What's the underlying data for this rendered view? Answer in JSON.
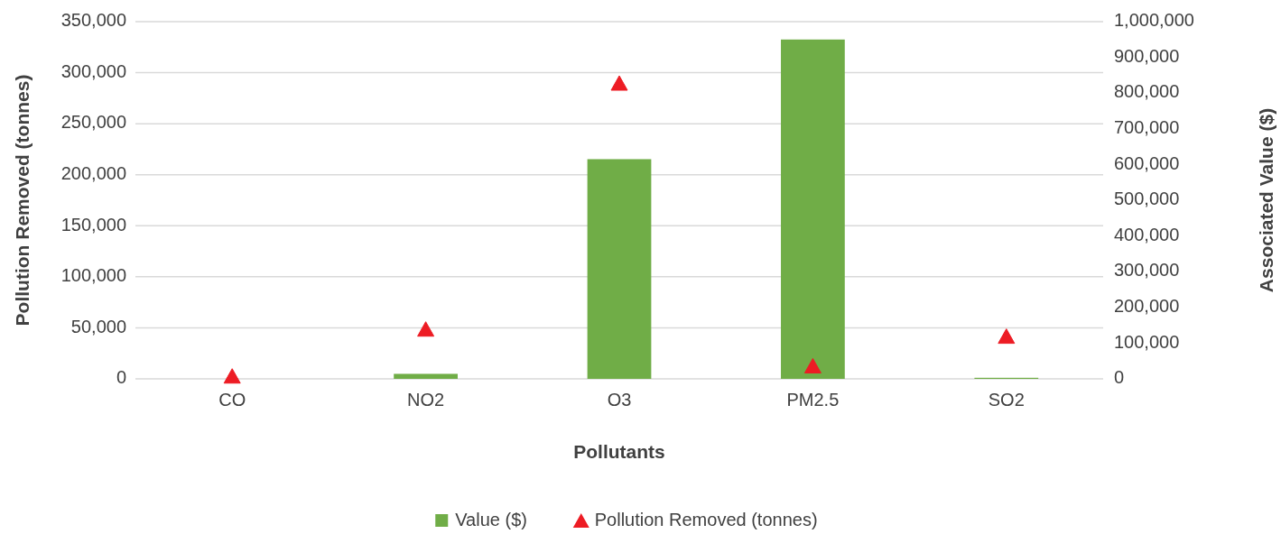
{
  "chart_data": {
    "type": "bar",
    "xlabel": "Pollutants",
    "ylabel": "Pollution Removed (tonnes)",
    "y2label": "Associated Value ($)",
    "categories": [
      "CO",
      "NO2",
      "O3",
      "PM2.5",
      "SO2"
    ],
    "series": [
      {
        "name": "Value ($)",
        "axis": "y2",
        "color": "#70ad47",
        "values": [
          0,
          14000,
          615000,
          950000,
          3000
        ]
      },
      {
        "name": "Pollution Removed (tonnes)",
        "type": "scatter",
        "axis": "y",
        "color": "#ed1c24",
        "marker": "triangle",
        "values": [
          2000,
          48000,
          289000,
          12000,
          41000
        ]
      }
    ],
    "ylim": [
      0,
      350000
    ],
    "yticks": [
      {
        "value": 0,
        "label": "0"
      },
      {
        "value": 50000,
        "label": "50,000"
      },
      {
        "value": 100000,
        "label": "100,000"
      },
      {
        "value": 150000,
        "label": "150,000"
      },
      {
        "value": 200000,
        "label": "200,000"
      },
      {
        "value": 250000,
        "label": "250,000"
      },
      {
        "value": 300000,
        "label": "300,000"
      },
      {
        "value": 350000,
        "label": "350,000"
      }
    ],
    "y2lim": [
      0,
      1000000
    ],
    "y2ticks": [
      {
        "value": 0,
        "label": "0"
      },
      {
        "value": 100000,
        "label": "100,000"
      },
      {
        "value": 200000,
        "label": "200,000"
      },
      {
        "value": 300000,
        "label": "300,000"
      },
      {
        "value": 400000,
        "label": "400,000"
      },
      {
        "value": 500000,
        "label": "500,000"
      },
      {
        "value": 600000,
        "label": "600,000"
      },
      {
        "value": 700000,
        "label": "700,000"
      },
      {
        "value": 800000,
        "label": "800,000"
      },
      {
        "value": 900000,
        "label": "900,000"
      },
      {
        "value": 1000000,
        "label": "1,000,000"
      }
    ],
    "grid": "y",
    "legend": "bottom"
  }
}
